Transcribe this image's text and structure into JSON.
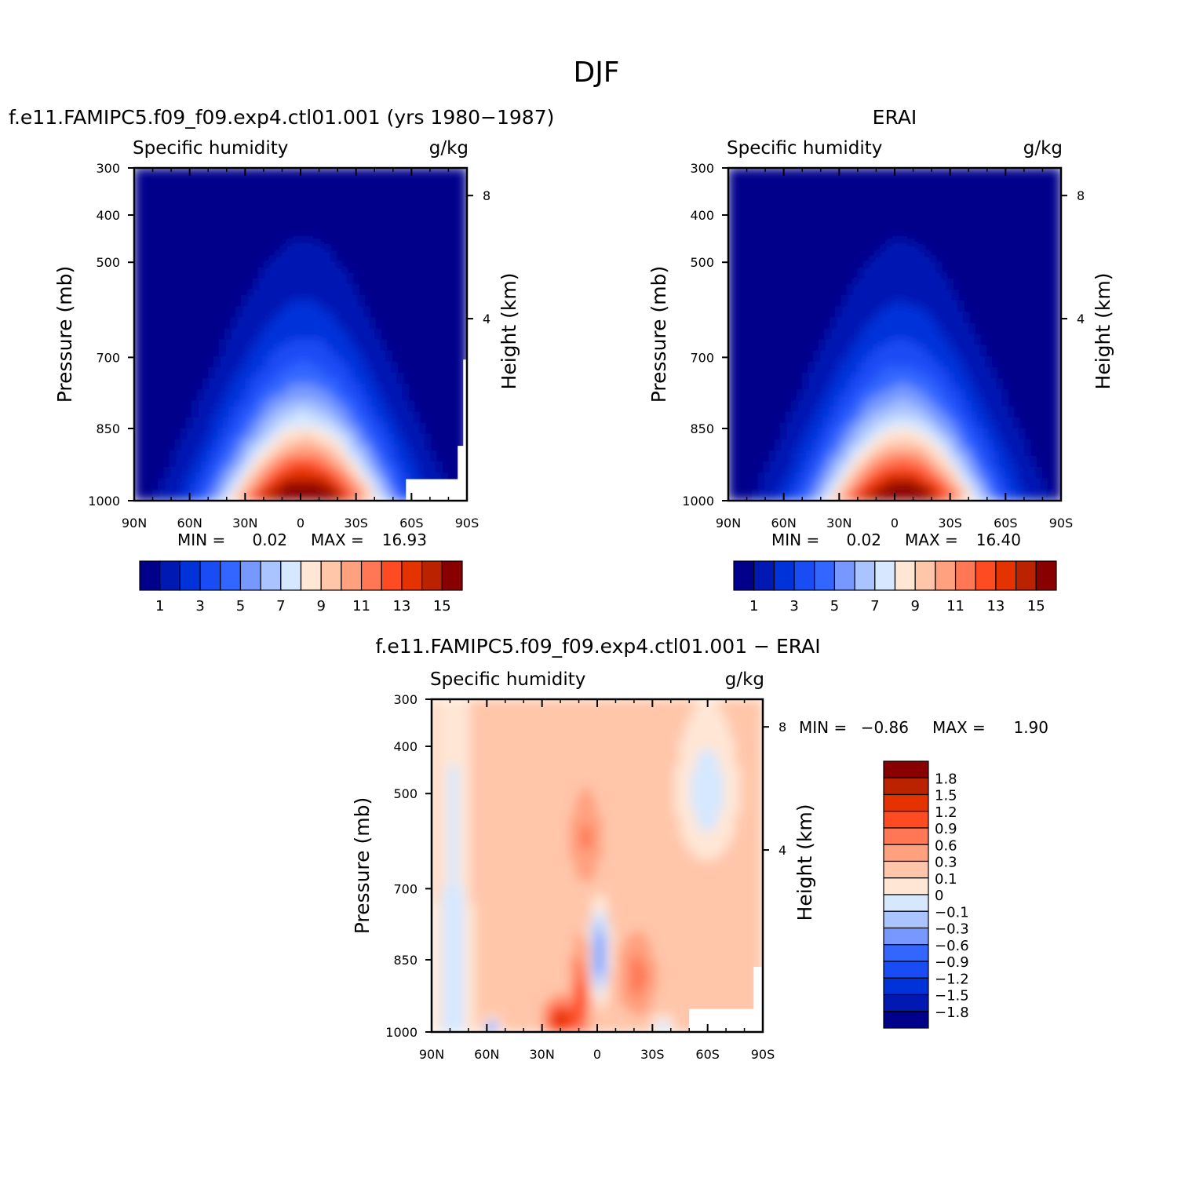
{
  "figure": {
    "title": "DJF"
  },
  "chart_data": [
    {
      "type": "contour",
      "title": "f.e11.FAMIPC5.f09_f09.exp4.ctl01.001 (yrs 1980-1987)",
      "variable": "Specific humidity",
      "units": "g/kg",
      "ylabel": "Pressure (mb)",
      "ylabel_right": "Height (km)",
      "x_ticks": [
        "90N",
        "60N",
        "30N",
        "0",
        "30S",
        "60S",
        "90S"
      ],
      "y_ticks": [
        "300",
        "400",
        "500",
        "700",
        "850",
        "1000"
      ],
      "y_ticks_right": [
        "8",
        "4"
      ],
      "min_label": "MIN =",
      "min_value": "0.02",
      "max_label": "MAX =",
      "max_value": "16.93",
      "min": 0.02,
      "max": 16.93,
      "levels": [
        1,
        2,
        3,
        4,
        5,
        6,
        7,
        8,
        9,
        10,
        11,
        12,
        13,
        14,
        15
      ],
      "colorbar_labels": [
        "1",
        "3",
        "5",
        "7",
        "9",
        "11",
        "13",
        "15"
      ],
      "colors": [
        "#00008b",
        "#0019b3",
        "#0032d9",
        "#1a4cf5",
        "#3366ff",
        "#7799ff",
        "#aac4ff",
        "#d5e8ff",
        "#ffe6d5",
        "#ffc6aa",
        "#ffa07f",
        "#ff7755",
        "#ff4b22",
        "#e53300",
        "#bb2200",
        "#880000"
      ]
    },
    {
      "type": "contour",
      "title": "ERAI",
      "variable": "Specific humidity",
      "units": "g/kg",
      "ylabel": "Pressure (mb)",
      "ylabel_right": "Height (km)",
      "x_ticks": [
        "90N",
        "60N",
        "30N",
        "0",
        "30S",
        "60S",
        "90S"
      ],
      "y_ticks": [
        "300",
        "400",
        "500",
        "700",
        "850",
        "1000"
      ],
      "y_ticks_right": [
        "8",
        "4"
      ],
      "min_label": "MIN =",
      "min_value": "0.02",
      "max_label": "MAX =",
      "max_value": "16.40",
      "min": 0.02,
      "max": 16.4,
      "levels": [
        1,
        2,
        3,
        4,
        5,
        6,
        7,
        8,
        9,
        10,
        11,
        12,
        13,
        14,
        15
      ],
      "colorbar_labels": [
        "1",
        "3",
        "5",
        "7",
        "9",
        "11",
        "13",
        "15"
      ],
      "colors": [
        "#00008b",
        "#0019b3",
        "#0032d9",
        "#1a4cf5",
        "#3366ff",
        "#7799ff",
        "#aac4ff",
        "#d5e8ff",
        "#ffe6d5",
        "#ffc6aa",
        "#ffa07f",
        "#ff7755",
        "#ff4b22",
        "#e53300",
        "#bb2200",
        "#880000"
      ]
    },
    {
      "type": "contour",
      "title": "f.e11.FAMIPC5.f09_f09.exp4.ctl01.001 - ERAI",
      "variable": "Specific humidity",
      "units": "g/kg",
      "ylabel": "Pressure (mb)",
      "ylabel_right": "Height (km)",
      "x_ticks": [
        "90N",
        "60N",
        "30N",
        "0",
        "30S",
        "60S",
        "90S"
      ],
      "y_ticks": [
        "300",
        "400",
        "500",
        "700",
        "850",
        "1000"
      ],
      "y_ticks_right": [
        "8",
        "4"
      ],
      "min_label": "MIN =",
      "min_value": "-0.86",
      "max_label": "MAX =",
      "max_value": "1.90",
      "min": -0.86,
      "max": 1.9,
      "levels": [
        -1.8,
        -1.5,
        -1.2,
        -0.9,
        -0.6,
        -0.3,
        -0.1,
        0,
        0.1,
        0.3,
        0.6,
        0.9,
        1.2,
        1.5,
        1.8
      ],
      "colorbar_labels": [
        "1.8",
        "1.5",
        "1.2",
        "0.9",
        "0.6",
        "0.3",
        "0.1",
        "0",
        "-0.1",
        "-0.3",
        "-0.6",
        "-0.9",
        "-1.2",
        "-1.5",
        "-1.8"
      ],
      "colors": [
        "#00008b",
        "#0019b3",
        "#0032d9",
        "#1a4cf5",
        "#3366ff",
        "#7799ff",
        "#aac4ff",
        "#d5e8ff",
        "#ffe6d5",
        "#ffc6aa",
        "#ffa07f",
        "#ff7755",
        "#ff4b22",
        "#e53300",
        "#bb2200",
        "#880000"
      ]
    }
  ]
}
